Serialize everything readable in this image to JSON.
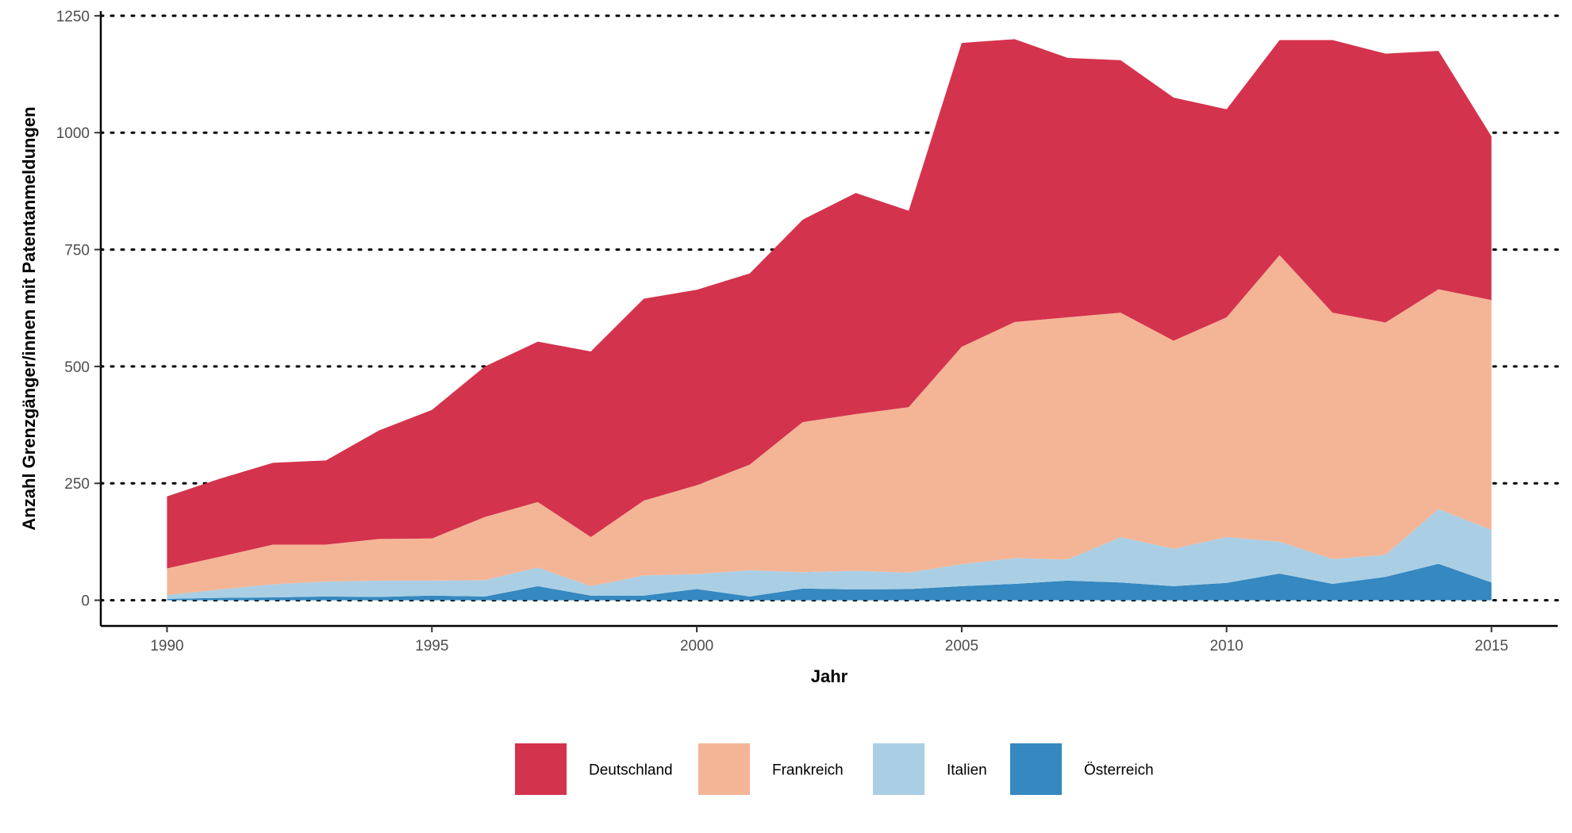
{
  "chart_data": {
    "type": "area",
    "stacked": true,
    "xlabel": "Jahr",
    "ylabel": "Anzahl Grenzgänger/innen mit Patentanmeldungen",
    "xlim": [
      1988.75,
      2016.25
    ],
    "ylim": [
      -55,
      1260
    ],
    "x_ticks": [
      1990,
      1995,
      2000,
      2005,
      2010,
      2015
    ],
    "y_ticks": [
      0,
      250,
      500,
      750,
      1000,
      1250
    ],
    "grid": "horizontal dotted",
    "legend_position": "bottom",
    "x": [
      1990,
      1991,
      1992,
      1993,
      1994,
      1995,
      1996,
      1997,
      1998,
      1999,
      2000,
      2001,
      2002,
      2003,
      2004,
      2005,
      2006,
      2007,
      2008,
      2009,
      2010,
      2011,
      2012,
      2013,
      2014,
      2015
    ],
    "series": [
      {
        "name": "Österreich",
        "color": "#3588C0",
        "values": [
          3,
          5,
          6,
          8,
          7,
          10,
          8,
          30,
          10,
          10,
          24,
          8,
          25,
          23,
          24,
          30,
          35,
          42,
          38,
          30,
          37,
          57,
          35,
          50,
          78,
          38
        ]
      },
      {
        "name": "Italien",
        "color": "#AACFE4",
        "values": [
          8,
          18,
          28,
          32,
          35,
          32,
          35,
          40,
          20,
          43,
          32,
          56,
          35,
          40,
          35,
          47,
          55,
          45,
          97,
          80,
          98,
          68,
          53,
          47,
          117,
          112
        ]
      },
      {
        "name": "Frankreich",
        "color": "#F4B597",
        "values": [
          57,
          70,
          85,
          79,
          89,
          90,
          135,
          140,
          105,
          160,
          190,
          226,
          321,
          335,
          354,
          465,
          505,
          518,
          480,
          445,
          470,
          613,
          527,
          497,
          470,
          492
        ]
      },
      {
        "name": "Deutschland",
        "color": "#D4334D",
        "values": [
          154,
          167,
          175,
          180,
          232,
          275,
          322,
          343,
          397,
          432,
          418,
          409,
          433,
          473,
          420,
          650,
          605,
          555,
          540,
          520,
          445,
          460,
          583,
          575,
          510,
          350
        ]
      }
    ]
  }
}
